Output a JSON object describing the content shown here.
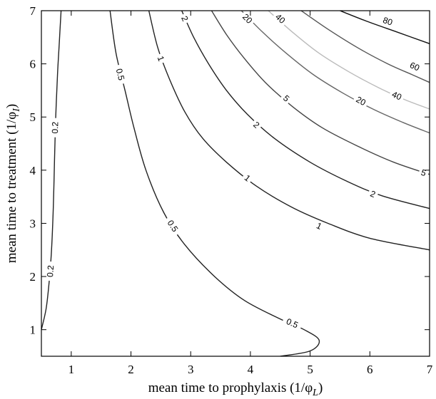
{
  "chart_data": {
    "type": "contour",
    "title": "",
    "xlabel": "mean time to prophylaxis (1/φ",
    "xlabel_sub": "L",
    "xlabel_close": ")",
    "ylabel": "mean time to treatment (1/φ",
    "ylabel_sub": "I",
    "ylabel_close": ")",
    "xlim": [
      0.5,
      7
    ],
    "ylim": [
      0.5,
      7
    ],
    "xticks": [
      1,
      2,
      3,
      4,
      5,
      6,
      7
    ],
    "yticks": [
      1,
      2,
      3,
      4,
      5,
      6,
      7
    ],
    "grid": false,
    "contours": [
      {
        "level": "0.2",
        "color": "#222222",
        "points": [
          [
            0.5,
            1.0
          ],
          [
            0.58,
            1.4
          ],
          [
            0.63,
            1.9
          ],
          [
            0.67,
            2.5
          ],
          [
            0.7,
            3.3
          ],
          [
            0.72,
            4.2
          ],
          [
            0.74,
            5.0
          ],
          [
            0.77,
            5.8
          ],
          [
            0.8,
            6.4
          ],
          [
            0.83,
            7.0
          ]
        ],
        "labels": [
          {
            "text": "0.2",
            "x": 0.73,
            "y": 4.8
          },
          {
            "text": "0.2",
            "x": 0.65,
            "y": 2.1
          }
        ]
      },
      {
        "level": "0.5",
        "color": "#222222",
        "points": [
          [
            1.65,
            7.0
          ],
          [
            1.75,
            6.2
          ],
          [
            1.9,
            5.5
          ],
          [
            2.05,
            4.8
          ],
          [
            2.25,
            4.0
          ],
          [
            2.55,
            3.2
          ],
          [
            2.9,
            2.6
          ],
          [
            3.4,
            2.0
          ],
          [
            3.9,
            1.55
          ],
          [
            4.5,
            1.2
          ],
          [
            4.9,
            1.0
          ],
          [
            5.15,
            0.8
          ],
          [
            5.0,
            0.6
          ],
          [
            4.5,
            0.5
          ]
        ],
        "labels": [
          {
            "text": "0.5",
            "x": 1.82,
            "y": 5.8
          },
          {
            "text": "0.5",
            "x": 2.7,
            "y": 2.95
          },
          {
            "text": "0.5",
            "x": 4.7,
            "y": 1.12
          }
        ]
      },
      {
        "level": "1",
        "color": "#222222",
        "points": [
          [
            2.3,
            7.0
          ],
          [
            2.45,
            6.3
          ],
          [
            2.65,
            5.7
          ],
          [
            2.9,
            5.1
          ],
          [
            3.2,
            4.6
          ],
          [
            3.6,
            4.15
          ],
          [
            4.1,
            3.7
          ],
          [
            4.7,
            3.3
          ],
          [
            5.3,
            3.0
          ],
          [
            6.0,
            2.72
          ],
          [
            7.0,
            2.5
          ]
        ],
        "labels": [
          {
            "text": "1",
            "x": 2.5,
            "y": 6.1
          },
          {
            "text": "1",
            "x": 3.95,
            "y": 3.85
          },
          {
            "text": "1",
            "x": 5.15,
            "y": 2.95
          }
        ]
      },
      {
        "level": "2",
        "color": "#222222",
        "points": [
          [
            2.85,
            7.0
          ],
          [
            3.05,
            6.5
          ],
          [
            3.3,
            6.0
          ],
          [
            3.6,
            5.5
          ],
          [
            3.95,
            5.05
          ],
          [
            4.4,
            4.6
          ],
          [
            5.0,
            4.15
          ],
          [
            5.6,
            3.8
          ],
          [
            6.2,
            3.52
          ],
          [
            7.0,
            3.28
          ]
        ],
        "labels": [
          {
            "text": "2",
            "x": 2.9,
            "y": 6.85
          },
          {
            "text": "2",
            "x": 4.1,
            "y": 4.85
          },
          {
            "text": "2",
            "x": 6.05,
            "y": 3.55
          }
        ]
      },
      {
        "level": "5",
        "color": "#444444",
        "points": [
          [
            3.35,
            7.0
          ],
          [
            3.6,
            6.55
          ],
          [
            3.9,
            6.1
          ],
          [
            4.25,
            5.65
          ],
          [
            4.7,
            5.2
          ],
          [
            5.2,
            4.8
          ],
          [
            5.8,
            4.45
          ],
          [
            6.4,
            4.15
          ],
          [
            7.0,
            3.92
          ]
        ],
        "labels": [
          {
            "text": "5",
            "x": 4.6,
            "y": 5.35
          },
          {
            "text": "5",
            "x": 6.9,
            "y": 3.95
          }
        ]
      },
      {
        "level": "20",
        "color": "#666666",
        "points": [
          [
            3.85,
            7.0
          ],
          [
            4.2,
            6.6
          ],
          [
            4.6,
            6.2
          ],
          [
            5.05,
            5.8
          ],
          [
            5.55,
            5.45
          ],
          [
            6.05,
            5.15
          ],
          [
            6.55,
            4.9
          ],
          [
            7.0,
            4.7
          ]
        ],
        "labels": [
          {
            "text": "20",
            "x": 3.95,
            "y": 6.85
          },
          {
            "text": "20",
            "x": 5.85,
            "y": 5.3
          }
        ]
      },
      {
        "level": "40",
        "color": "#bbbbbb",
        "points": [
          [
            4.3,
            7.0
          ],
          [
            4.7,
            6.6
          ],
          [
            5.15,
            6.2
          ],
          [
            5.65,
            5.85
          ],
          [
            6.15,
            5.55
          ],
          [
            6.6,
            5.32
          ],
          [
            7.0,
            5.15
          ]
        ],
        "labels": [
          {
            "text": "40",
            "x": 4.5,
            "y": 6.85
          },
          {
            "text": "40",
            "x": 6.45,
            "y": 5.4
          }
        ]
      },
      {
        "level": "60",
        "color": "#555555",
        "points": [
          [
            4.85,
            7.0
          ],
          [
            5.3,
            6.65
          ],
          [
            5.8,
            6.3
          ],
          [
            6.3,
            6.0
          ],
          [
            6.7,
            5.8
          ],
          [
            7.0,
            5.65
          ]
        ],
        "labels": [
          {
            "text": "60",
            "x": 6.75,
            "y": 5.95
          }
        ]
      },
      {
        "level": "80",
        "color": "#111111",
        "points": [
          [
            5.5,
            7.0
          ],
          [
            5.95,
            6.8
          ],
          [
            6.45,
            6.6
          ],
          [
            7.0,
            6.38
          ]
        ],
        "labels": [
          {
            "text": "80",
            "x": 6.3,
            "y": 6.8
          }
        ]
      }
    ]
  }
}
